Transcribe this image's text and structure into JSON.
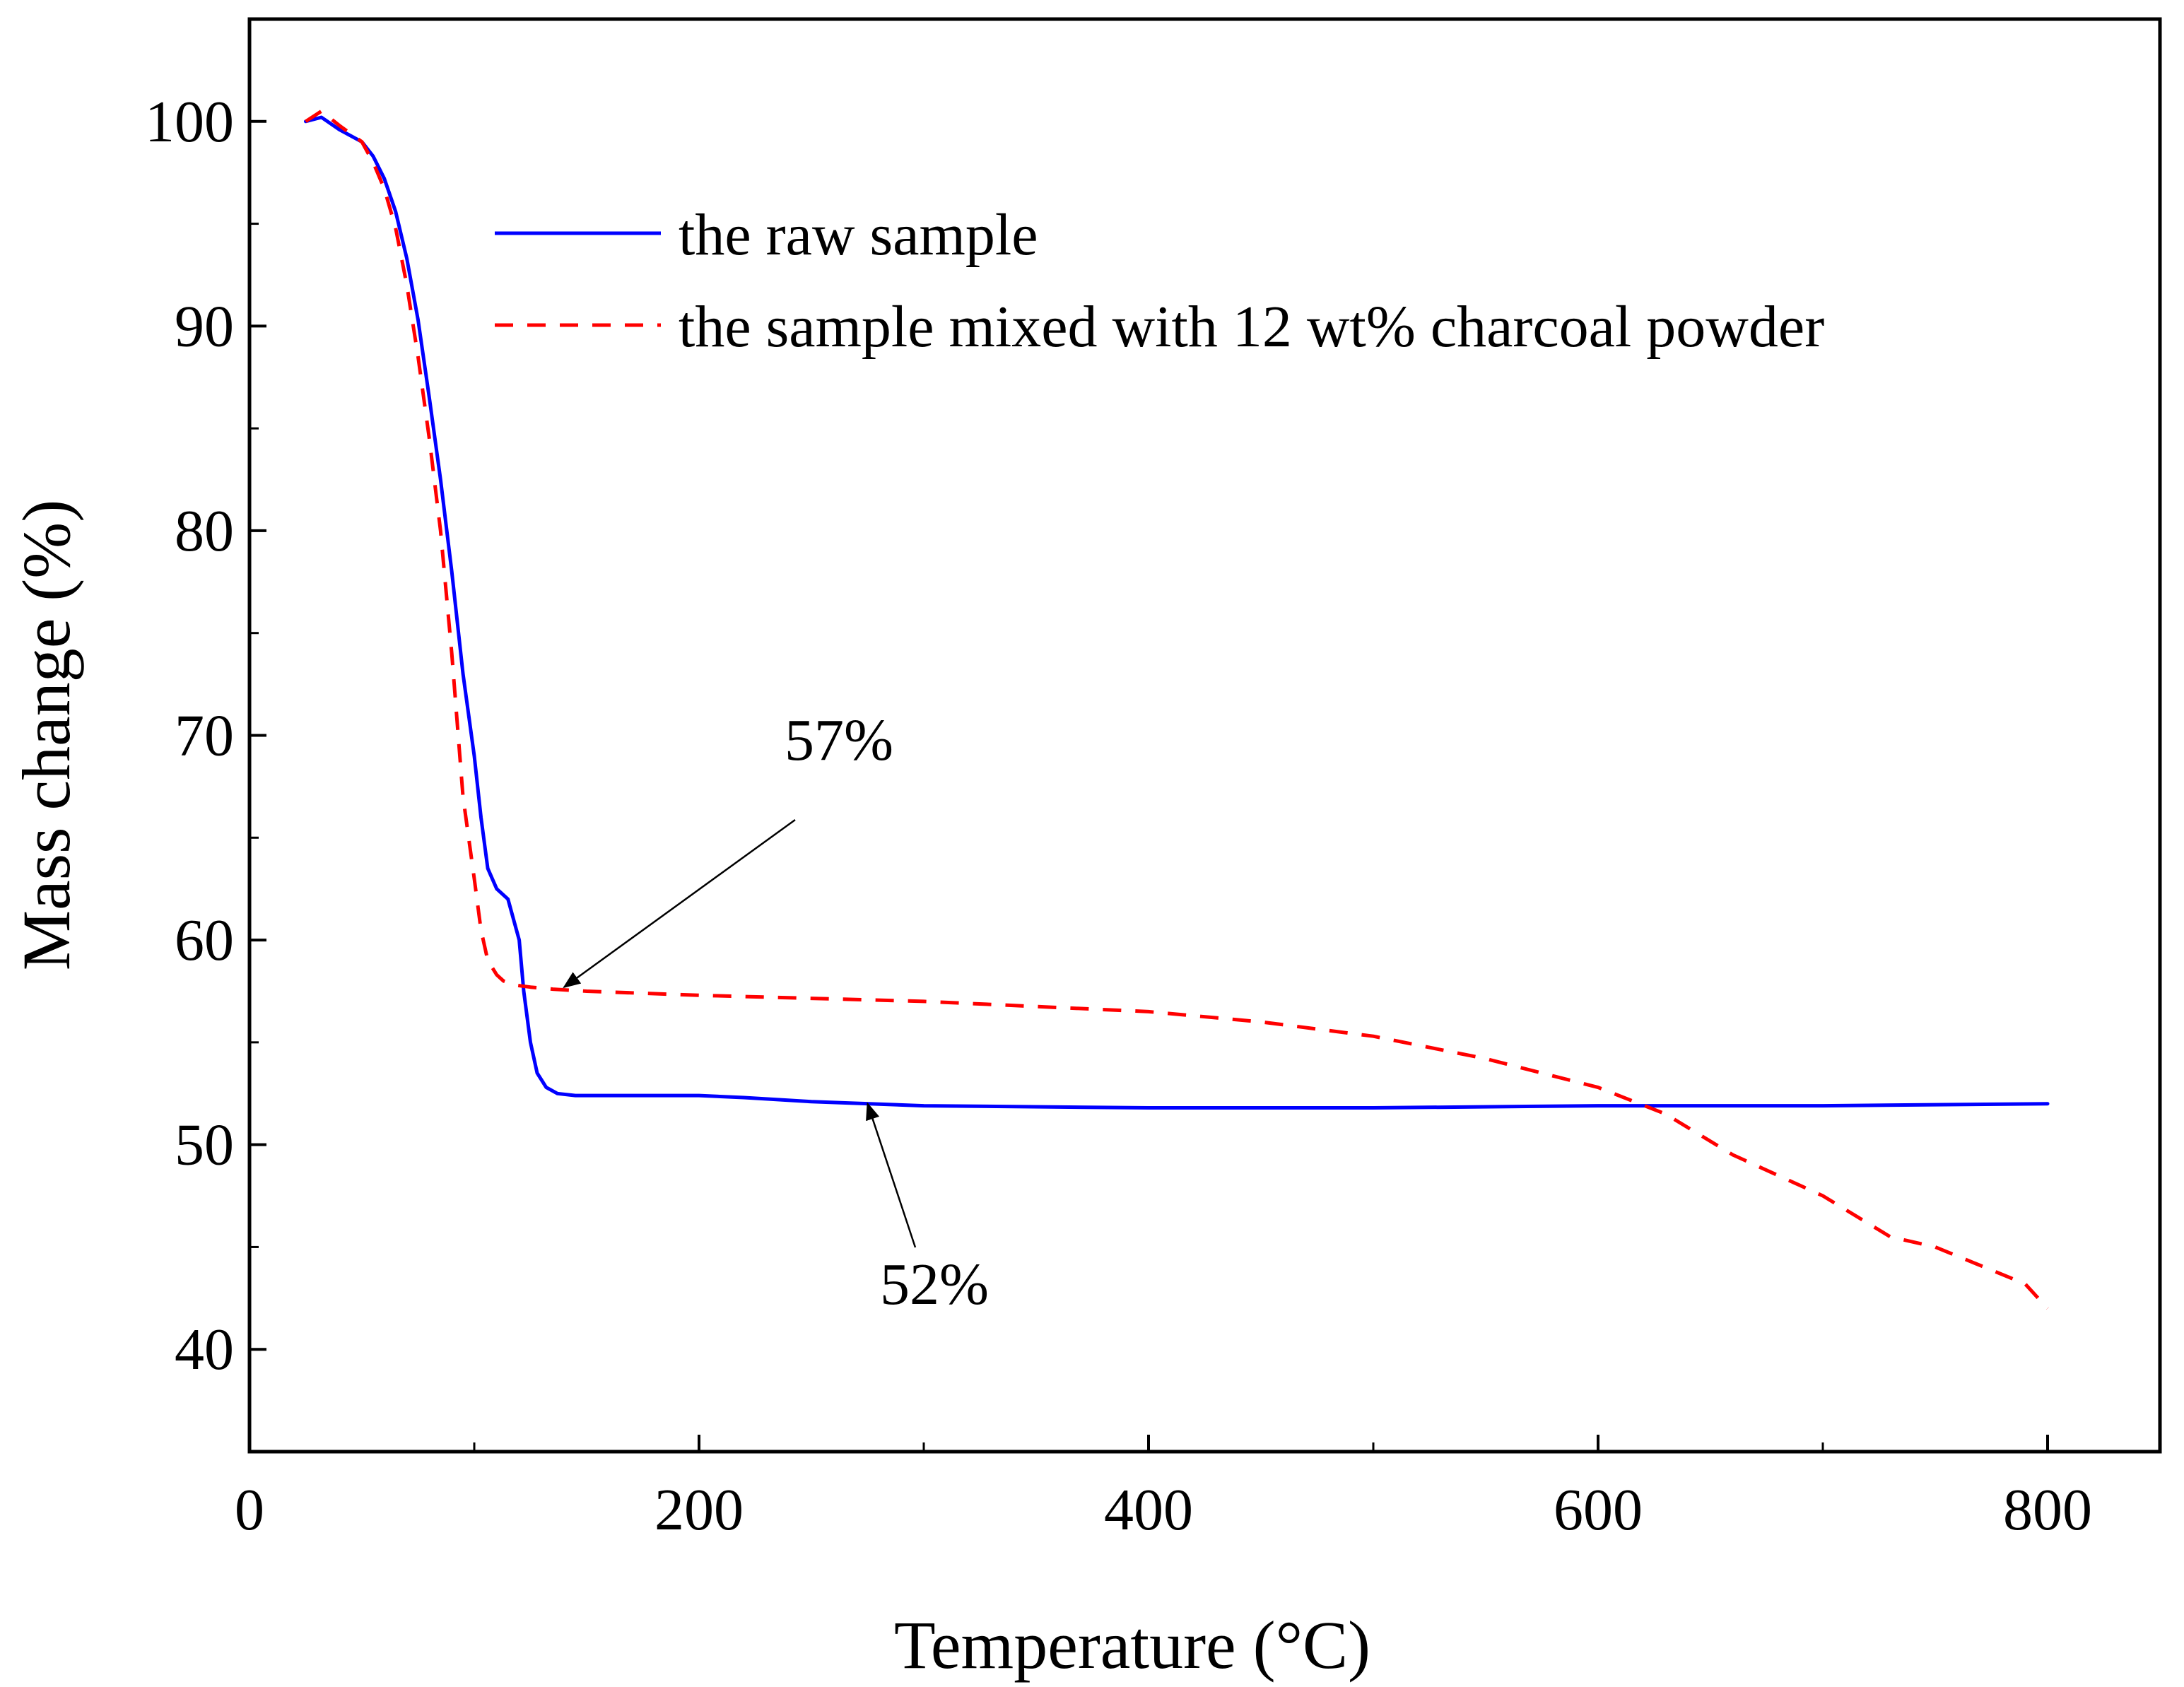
{
  "chart_data": {
    "type": "line",
    "title": "",
    "xlabel": "Temperature (°C)",
    "ylabel": "Mass change (%)",
    "xlim": [
      0,
      850
    ],
    "ylim": [
      35,
      105
    ],
    "xticks": [
      0,
      200,
      400,
      600,
      800
    ],
    "xticks_minor": [
      100,
      300,
      500,
      700
    ],
    "yticks": [
      40,
      50,
      60,
      70,
      80,
      90,
      100
    ],
    "yticks_minor": [
      45,
      55,
      65,
      75,
      85,
      95
    ],
    "grid": false,
    "legend_position": "top-right",
    "series": [
      {
        "name": "the raw sample",
        "color": "#0000ff",
        "style": "solid",
        "x": [
          25,
          32,
          40,
          50,
          55,
          60,
          65,
          70,
          75,
          80,
          85,
          90,
          95,
          100,
          103,
          106,
          110,
          115,
          120,
          122,
          125,
          128,
          132,
          137,
          145,
          160,
          200,
          220,
          250,
          300,
          400,
          500,
          600,
          700,
          800
        ],
        "y": [
          100,
          100.2,
          99.6,
          99.0,
          98.3,
          97.2,
          95.6,
          93.3,
          90.3,
          86.5,
          82.5,
          78.0,
          73.0,
          69.0,
          66.0,
          63.5,
          62.5,
          62.0,
          60.0,
          57.5,
          55.0,
          53.5,
          52.8,
          52.5,
          52.4,
          52.4,
          52.4,
          52.3,
          52.1,
          51.9,
          51.8,
          51.8,
          51.9,
          51.9,
          52.0
        ]
      },
      {
        "name": "the sample mixed with 12 wt% charcoal powder",
        "color": "#ff0000",
        "style": "dashed",
        "x": [
          25,
          32,
          40,
          50,
          55,
          60,
          65,
          70,
          75,
          80,
          85,
          90,
          95,
          100,
          103,
          106,
          110,
          113,
          118,
          125,
          135,
          150,
          200,
          300,
          400,
          450,
          500,
          550,
          600,
          630,
          660,
          700,
          730,
          750,
          790,
          800
        ],
        "y": [
          100,
          100.5,
          99.8,
          99.0,
          98.0,
          96.7,
          94.8,
          92.0,
          88.5,
          84.5,
          80.0,
          74.0,
          67.0,
          63.0,
          60.5,
          59.0,
          58.3,
          58.0,
          57.8,
          57.7,
          57.6,
          57.5,
          57.3,
          57.0,
          56.5,
          56.0,
          55.3,
          54.2,
          52.8,
          51.5,
          49.5,
          47.5,
          45.5,
          45.0,
          43.2,
          42.0
        ]
      }
    ],
    "annotations": [
      {
        "text": "57%",
        "target_x": 140,
        "target_y": 57.7
      },
      {
        "text": "52%",
        "target_x": 275,
        "target_y": 52.0
      }
    ]
  }
}
